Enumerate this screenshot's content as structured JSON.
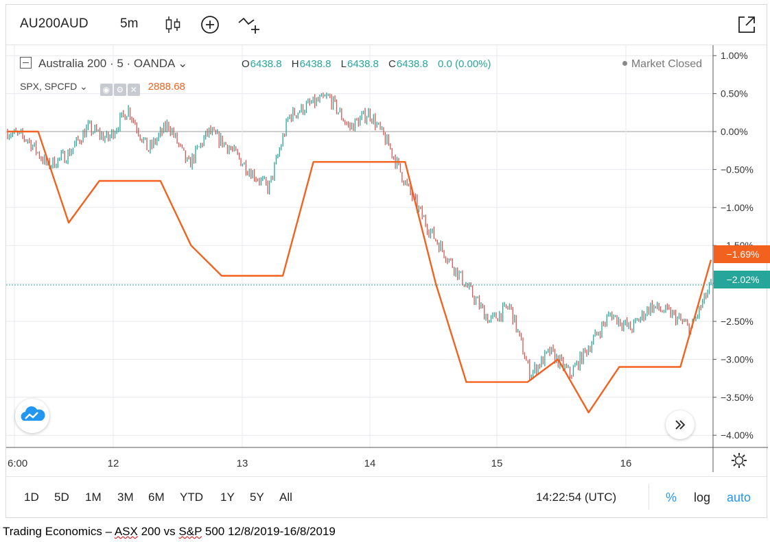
{
  "toolbar": {
    "symbol": "AU200AUD",
    "interval": "5m",
    "icons": [
      "candles-icon",
      "compare-add-icon",
      "indicators-icon",
      "expand-icon"
    ]
  },
  "legend": {
    "main_name": "Australia 200 · 5 · OANDA",
    "chevron": "⌄",
    "ohlc": [
      {
        "key": "O",
        "value": "6438.8"
      },
      {
        "key": "H",
        "value": "6438.8"
      },
      {
        "key": "L",
        "value": "6438.8"
      },
      {
        "key": "C",
        "value": "6438.8"
      }
    ],
    "change": "0.0 (0.00%)",
    "market_status": "Market Closed",
    "compare_name": "SPX, SPCFD",
    "compare_value": "2888.68"
  },
  "axis": {
    "y_ticks": [
      "1.00%",
      "0.50%",
      "0.00%",
      "−0.50%",
      "−1.00%",
      "−1.50%",
      "−2.00%",
      "−2.50%",
      "−3.00%",
      "−3.50%",
      "−4.00%"
    ],
    "x_ticks": [
      "6:00",
      "12",
      "13",
      "14",
      "15",
      "16"
    ],
    "last_spx": "−1.69%",
    "last_au": "−2.02%"
  },
  "bottom": {
    "ranges": [
      "1D",
      "5D",
      "1M",
      "3M",
      "6M",
      "YTD",
      "1Y",
      "5Y",
      "All"
    ],
    "time": "14:22:54 (UTC)",
    "percent": "%",
    "log": "log",
    "auto": "auto"
  },
  "caption": {
    "part1": "Trading Economics – ",
    "part2": "ASX",
    "part3": " 200 vs ",
    "part4": "S&P",
    "part5": " 500 12/8/2019-16/8/2019"
  },
  "colors": {
    "spx": "#f2611d",
    "au_up": "#26a69a",
    "au_down": "#d9534f",
    "accent": "#2196f3"
  },
  "chart_data": {
    "type": "line",
    "ylim": [
      -4.1,
      1.05
    ],
    "series": [
      {
        "name": "Australia 200 · 5 · OANDA",
        "values": [
          0.0,
          -0.1,
          -0.45,
          -0.3,
          0.05,
          -0.1,
          0.3,
          -0.25,
          0.1,
          -0.45,
          0.0,
          -0.2,
          -0.5,
          -0.75,
          0.2,
          0.35,
          0.45,
          0.05,
          0.25,
          -0.2,
          -0.8,
          -1.3,
          -1.7,
          -2.1,
          -2.5,
          -2.3,
          -3.2,
          -2.9,
          -3.2,
          -2.8,
          -2.4,
          -2.6,
          -2.3,
          -2.4,
          -2.6,
          -2.02
        ]
      },
      {
        "name": "SPX, SPCFD",
        "values": [
          0.0,
          0.0,
          -1.2,
          -0.65,
          -0.65,
          -0.65,
          -1.5,
          -1.9,
          -1.9,
          -1.9,
          -0.4,
          -0.4,
          -0.4,
          -0.4,
          -2.0,
          -3.3,
          -3.3,
          -3.3,
          -3.0,
          -3.7,
          -3.1,
          -3.1,
          -3.1,
          -1.69
        ]
      }
    ]
  }
}
